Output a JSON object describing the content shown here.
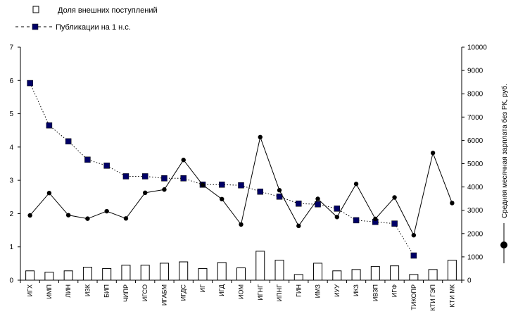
{
  "chart_data": {
    "type": "bar",
    "title": "",
    "categories": [
      "ИГХ",
      "ИМП",
      "ЛИН",
      "ИЗК",
      "БИП",
      "ЧИПР",
      "ИГСО",
      "ИГАБМ",
      "ИГДС",
      "ИГ",
      "ИГД",
      "ИОМ",
      "ИГНГ",
      "ИПНГ",
      "ГИН",
      "ИМЗ",
      "ИУУ",
      "ИКЗ",
      "ИВЗП",
      "ИГФ",
      "ТИКОПР",
      "КТИ ГЭП",
      "КТИ МК"
    ],
    "left_axis": {
      "ylim": [
        0,
        7
      ],
      "ticks": [
        "0",
        "1",
        "2",
        "3",
        "4",
        "5",
        "6",
        "7"
      ]
    },
    "right_axis": {
      "ylim": [
        0,
        10000
      ],
      "ticks": [
        "0",
        "1000",
        "2000",
        "3000",
        "4000",
        "5000",
        "6000",
        "7000",
        "8000",
        "9000",
        "10000"
      ],
      "label": "Средняя месячная зарплата без РК, руб."
    },
    "legend": {
      "bar_label": "Доля внешних поступлений",
      "pubs_label": "Публикации на 1  н.с."
    },
    "series": [
      {
        "name": "Доля внешних поступлений",
        "kind": "bar",
        "axis": "left",
        "values": [
          0.28,
          0.24,
          0.28,
          0.39,
          0.35,
          0.45,
          0.45,
          0.51,
          0.55,
          0.35,
          0.53,
          0.37,
          0.87,
          0.6,
          0.17,
          0.51,
          0.28,
          0.32,
          0.41,
          0.43,
          0.17,
          0.32,
          0.6
        ]
      },
      {
        "name": "Публикации на 1  н.с.",
        "kind": "line-dotted-square",
        "axis": "left",
        "values": [
          5.92,
          4.65,
          4.17,
          3.62,
          3.44,
          3.12,
          3.12,
          3.06,
          3.06,
          2.87,
          2.87,
          2.85,
          2.66,
          2.51,
          2.3,
          2.28,
          2.15,
          1.8,
          1.75,
          1.7,
          0.74,
          null,
          null
        ]
      },
      {
        "name": "Средняя месячная зарплата без РК, руб.",
        "kind": "line-solid-dot",
        "axis": "right",
        "values": [
          2780,
          3740,
          2790,
          2640,
          2960,
          2650,
          3750,
          3890,
          5160,
          4090,
          3480,
          2390,
          6140,
          3860,
          2330,
          3490,
          2710,
          4130,
          2630,
          3550,
          1930,
          5460,
          3310
        ]
      }
    ],
    "colors": {
      "bar_fill": "#ffffff",
      "bar_stroke": "#000000",
      "pubs_marker": "#000066",
      "salary_marker": "#000000"
    }
  }
}
